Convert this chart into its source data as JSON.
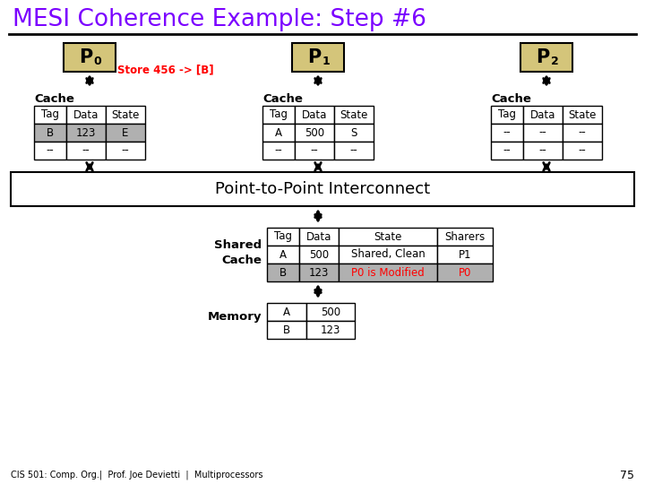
{
  "title": "MESI Coherence Example: Step #6",
  "title_color": "#7B00FF",
  "bg_color": "#FFFFFF",
  "tan_color": "#D4C57A",
  "gray_color": "#B0B0B0",
  "store_annotation": "Store 456 -> [B]",
  "p0_cache": [
    [
      "B",
      "123",
      "E"
    ],
    [
      "--",
      "--",
      "--"
    ]
  ],
  "p1_cache": [
    [
      "A",
      "500",
      "S"
    ],
    [
      "--",
      "--",
      "--"
    ]
  ],
  "p2_cache": [
    [
      "--",
      "--",
      "--"
    ],
    [
      "--",
      "--",
      "--"
    ]
  ],
  "shared_cache_headers": [
    "Tag",
    "Data",
    "State",
    "Sharers"
  ],
  "shared_cache_rows": [
    [
      "A",
      "500",
      "Shared, Clean",
      "P1"
    ],
    [
      "B",
      "123",
      "P0 is Modified",
      "P0"
    ]
  ],
  "memory_rows": [
    [
      "A",
      "500"
    ],
    [
      "B",
      "123"
    ]
  ],
  "footer": "CIS 501: Comp. Org.|  Prof. Joe Devietti  |  Mul tiprocessors",
  "page_num": "75"
}
